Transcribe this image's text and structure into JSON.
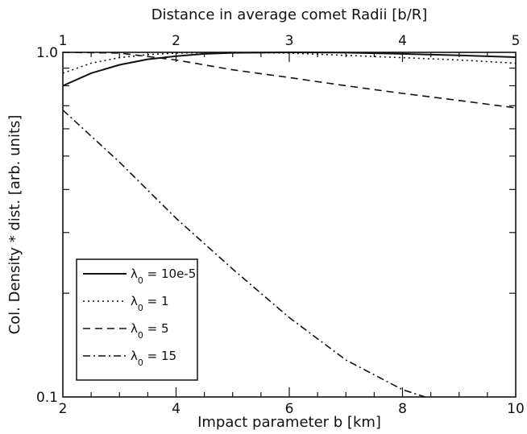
{
  "chart_data": {
    "type": "line",
    "xlabel": "Impact parameter b [km]",
    "ylabel": "Col. Density * dist. [arb. units]",
    "xlim": [
      2,
      10
    ],
    "ylim": [
      0.1,
      1.0
    ],
    "y_scale": "log",
    "grid": false,
    "legend_position": "bottom-left",
    "x_ticks": [
      2,
      4,
      6,
      8,
      10
    ],
    "x_tick_labels": [
      "2",
      "4",
      "6",
      "8",
      "10"
    ],
    "y_tick_labels": [
      "0.1",
      "1.0"
    ],
    "top_axis": {
      "label": "Distance in average comet Radii [b/R]",
      "ticks": [
        1,
        2,
        3,
        4,
        5
      ],
      "tick_labels": [
        "1",
        "2",
        "3",
        "4",
        "5"
      ]
    },
    "series": [
      {
        "name": "10e-5",
        "style": "solid",
        "x": [
          2,
          2.5,
          3,
          3.5,
          4,
          4.5,
          5,
          6,
          7,
          8,
          9,
          10
        ],
        "y": [
          0.8,
          0.87,
          0.92,
          0.955,
          0.975,
          0.99,
          0.997,
          1.0,
          0.998,
          0.99,
          0.98,
          0.968
        ]
      },
      {
        "name": "1",
        "style": "dotted",
        "x": [
          2,
          2.5,
          3,
          3.5,
          4,
          5,
          6,
          7,
          8,
          9,
          10
        ],
        "y": [
          0.87,
          0.93,
          0.965,
          0.985,
          0.995,
          1.0,
          0.995,
          0.98,
          0.965,
          0.95,
          0.93
        ]
      },
      {
        "name": "5",
        "style": "dashed",
        "x": [
          2,
          3,
          4,
          5,
          6,
          7,
          8,
          9,
          10
        ],
        "y": [
          1.0,
          0.995,
          0.95,
          0.89,
          0.845,
          0.8,
          0.76,
          0.725,
          0.69
        ]
      },
      {
        "name": "15",
        "style": "dashdot",
        "x": [
          2,
          3,
          4,
          5,
          6,
          7,
          8,
          8.4
        ],
        "y": [
          0.68,
          0.48,
          0.33,
          0.235,
          0.17,
          0.128,
          0.105,
          0.1
        ]
      }
    ],
    "legend_label_prefix": "λ",
    "legend_label_subscript": "0",
    "legend_label_equals": " = "
  }
}
